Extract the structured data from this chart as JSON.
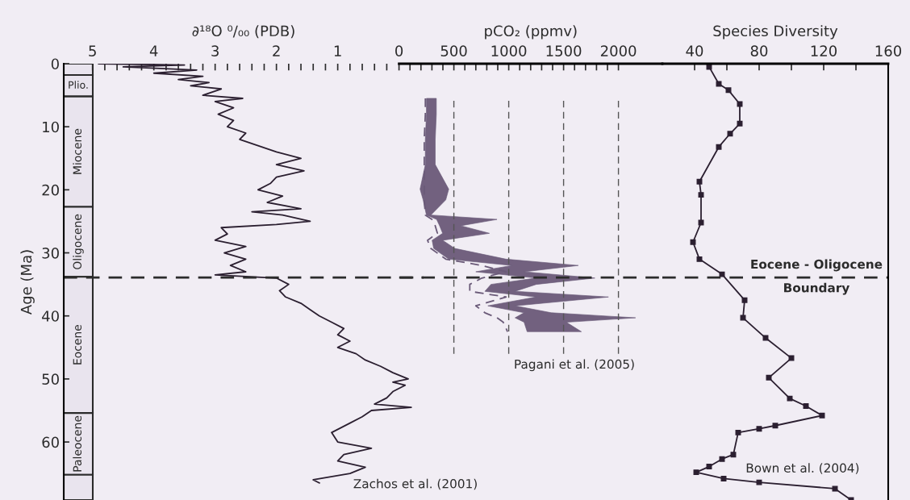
{
  "chart_data": [
    {
      "type": "line",
      "orientation": "horizontal",
      "xlabel": "∂¹⁸O ⁰/₀₀ (PDB)",
      "ylabel": "Age (Ma)",
      "x": [
        0,
        0.2,
        0.5,
        1,
        1.5,
        2,
        2.5,
        3,
        3.5,
        4,
        5,
        5.5,
        6,
        7,
        8,
        9,
        10,
        11,
        12,
        13,
        14,
        15,
        16,
        17,
        18,
        19,
        20,
        21,
        22,
        23,
        23.5,
        24,
        25,
        25.5,
        26,
        27,
        28,
        29,
        30,
        31,
        32,
        33,
        33.5,
        34,
        35,
        36,
        37,
        38,
        39,
        40,
        41,
        42,
        43,
        44,
        45,
        46,
        47,
        48,
        49,
        50,
        50.5,
        51,
        52,
        53,
        54,
        54.5,
        55,
        56,
        57,
        58.5,
        60,
        61,
        62,
        63,
        64,
        65,
        66,
        66.5
      ],
      "values": [
        4.9,
        3.5,
        4.5,
        3.3,
        4.0,
        3.2,
        3.6,
        3.1,
        3.4,
        2.9,
        3.2,
        2.55,
        3.0,
        2.7,
        2.95,
        2.7,
        2.8,
        2.5,
        2.6,
        2.3,
        2.0,
        1.6,
        2.0,
        1.55,
        2.0,
        2.1,
        2.3,
        1.9,
        2.15,
        1.6,
        2.4,
        1.9,
        1.45,
        2.0,
        2.9,
        2.8,
        3.0,
        2.5,
        2.85,
        2.5,
        2.75,
        2.5,
        3.0,
        2.0,
        1.8,
        1.95,
        1.85,
        1.6,
        1.45,
        1.3,
        1.1,
        0.9,
        1.0,
        0.8,
        1.0,
        0.7,
        0.55,
        0.3,
        0.1,
        -0.15,
        0.1,
        -0.1,
        0.1,
        0.2,
        0.4,
        -0.2,
        0.45,
        0.6,
        0.8,
        1.1,
        1.0,
        0.45,
        0.9,
        1.0,
        0.55,
        0.8,
        1.4,
        1.3
      ],
      "color": "#2b1f30",
      "marker": "none",
      "xlim": [
        5.47,
        -0.4
      ],
      "xticks": [
        5,
        {
          "value": 4.8,
          "label": null
        },
        {
          "value": 4.6,
          "label": null
        },
        {
          "value": 4.4,
          "label": null
        },
        {
          "value": 4.2,
          "label": null
        },
        4,
        {
          "value": 3.8,
          "label": null
        },
        {
          "value": 3.6,
          "label": null
        },
        {
          "value": 3.4,
          "label": null
        },
        {
          "value": 3.2,
          "label": null
        },
        3,
        {
          "value": 2.8,
          "label": null
        },
        {
          "value": 2.6,
          "label": null
        },
        {
          "value": 2.4,
          "label": null
        },
        {
          "value": 2.2,
          "label": null
        },
        2,
        {
          "value": 1.8,
          "label": null
        },
        {
          "value": 1.6,
          "label": null
        },
        {
          "value": 1.4,
          "label": null
        },
        {
          "value": 1.2,
          "label": null
        },
        1,
        {
          "value": 0.8,
          "label": null
        },
        {
          "value": 0.6,
          "label": null
        },
        {
          "value": 0.4,
          "label": null
        },
        {
          "value": 0.2,
          "label": null
        }
      ],
      "ylim": [
        69.2,
        0
      ],
      "yticks": [
        0,
        10,
        20,
        30,
        40,
        50,
        60
      ],
      "bands": [
        {
          "axis": "y",
          "from": 0,
          "to": 1.8,
          "label": null,
          "color": "#e9e4ee"
        },
        {
          "axis": "y",
          "from": 1.8,
          "to": 5.2,
          "label": "Plio.",
          "color": "#e9e4ee"
        },
        {
          "axis": "y",
          "from": 5.2,
          "to": 22.7,
          "label": "Miocene",
          "color": "#e9e4ee"
        },
        {
          "axis": "y",
          "from": 22.7,
          "to": 33.8,
          "label": "Oligocene",
          "color": "#e9e4ee"
        },
        {
          "axis": "y",
          "from": 33.8,
          "to": 55.4,
          "label": "Eocene",
          "color": "#e9e4ee"
        },
        {
          "axis": "y",
          "from": 55.4,
          "to": 65.2,
          "label": "Paleocene",
          "color": "#e9e4ee"
        },
        {
          "axis": "y",
          "from": 65.2,
          "to": 69.2,
          "label": null,
          "color": "#e9e4ee"
        }
      ],
      "ref_lines": [
        {
          "axis": "y",
          "value": 33.9,
          "line_style": "dashed",
          "color": "#2b2b2b"
        }
      ]
    },
    {
      "type": "line",
      "orientation": "horizontal",
      "xlabel": "pCO₂ (ppmv)",
      "tick_labels": "x",
      "series": [
        {
          "x": [
            5.5,
            8,
            12,
            16,
            19.9,
            21.6,
            24.0,
            24.7,
            25.7,
            26.9,
            28,
            29.3,
            31.0,
            32.0,
            33.0,
            34.0,
            35.0,
            36.1,
            37.0,
            38.4,
            39.5,
            40.3,
            41.0,
            42.5
          ],
          "values": [
            240,
            240,
            230,
            230,
            230,
            230,
            240,
            300,
            330,
            350,
            260,
            290,
            426,
            755,
            975,
            755,
            645,
            645,
            975,
            700,
            783,
            893,
            950,
            989
          ],
          "lower": [
            250,
            250,
            240,
            240,
            192,
            220,
            250,
            343,
            370,
            398,
            302,
            316,
            453,
            1030,
            700,
            1250,
            838,
            783,
            1250,
            810,
            1140,
            1058,
            1140,
            1168
          ],
          "upper": [
            340,
            340,
            330,
            330,
            453,
            426,
            290,
            893,
            563,
            824,
            398,
            508,
            975,
            1634,
            1140,
            1785,
            1250,
            1058,
            1909,
            1058,
            1387,
            2156,
            1525,
            1662
          ],
          "color": "#6a5a78"
        }
      ],
      "line_style": "dashed",
      "marker": "none",
      "xlim": [
        0,
        2400
      ],
      "xticks": [
        0,
        {
          "value": 100,
          "label": null
        },
        {
          "value": 200,
          "label": null
        },
        {
          "value": 300,
          "label": null
        },
        {
          "value": 400,
          "label": null
        },
        500,
        {
          "value": 600,
          "label": null
        },
        {
          "value": 700,
          "label": null
        },
        {
          "value": 800,
          "label": null
        },
        {
          "value": 900,
          "label": null
        },
        1000,
        {
          "value": 1100,
          "label": null
        },
        {
          "value": 1200,
          "label": null
        },
        {
          "value": 1300,
          "label": null
        },
        {
          "value": 1400,
          "label": null
        },
        1500,
        {
          "value": 1600,
          "label": null
        },
        {
          "value": 1700,
          "label": null
        },
        {
          "value": 1800,
          "label": null
        },
        {
          "value": 1900,
          "label": null
        },
        2000
      ],
      "ylim": [
        69.2,
        0
      ],
      "ref_lines": [
        {
          "axis": "x",
          "value": 500,
          "line_style": "dashed",
          "color": "#555555"
        },
        {
          "axis": "x",
          "value": 1000,
          "line_style": "dashed",
          "color": "#555555"
        },
        {
          "axis": "x",
          "value": 1500,
          "line_style": "dashed",
          "color": "#555555"
        },
        {
          "axis": "x",
          "value": 2000,
          "line_style": "dashed",
          "color": "#555555"
        },
        {
          "axis": "y",
          "value": 33.9,
          "line_style": "dashed",
          "color": "#2b2b2b"
        }
      ],
      "annotations": [
        "Pagani et al. (2005)",
        "Zachos et al. (2001)"
      ]
    },
    {
      "type": "line",
      "orientation": "horizontal",
      "xlabel": "Species Diversity",
      "tick_labels": "x",
      "x": [
        0.5,
        3.2,
        4.2,
        6.4,
        9.5,
        11.1,
        13.2,
        18.7,
        20.8,
        25.2,
        28.3,
        31.0,
        33.4,
        37.5,
        40.3,
        43.5,
        46.7,
        49.8,
        53.1,
        54.3,
        55.8,
        57.4,
        57.9,
        58.5,
        62.0,
        62.7,
        63.9,
        64.8,
        65.8,
        66.4,
        67.4,
        69.2
      ],
      "values": [
        49,
        55,
        61,
        68,
        68,
        62,
        55,
        43,
        44,
        44,
        39,
        43,
        57,
        71,
        70,
        84,
        100,
        86,
        99,
        109,
        119,
        90,
        80,
        67,
        64,
        57,
        49,
        41,
        58,
        80,
        127,
        137
      ],
      "color": "#2b1f30",
      "marker": "square",
      "xlim": [
        20,
        160
      ],
      "xticks": [
        40,
        {
          "value": 60,
          "label": null
        },
        80,
        {
          "value": 100,
          "label": null
        },
        120,
        {
          "value": 140,
          "label": null
        },
        160
      ],
      "ylim": [
        69.2,
        0
      ],
      "ref_lines": [
        {
          "axis": "y",
          "value": 33.9,
          "line_style": "dashed",
          "color": "#2b2b2b"
        }
      ],
      "annotations": [
        "Eocene - Oligocene",
        "Boundary",
        "Bown et al. (2004)"
      ]
    }
  ]
}
